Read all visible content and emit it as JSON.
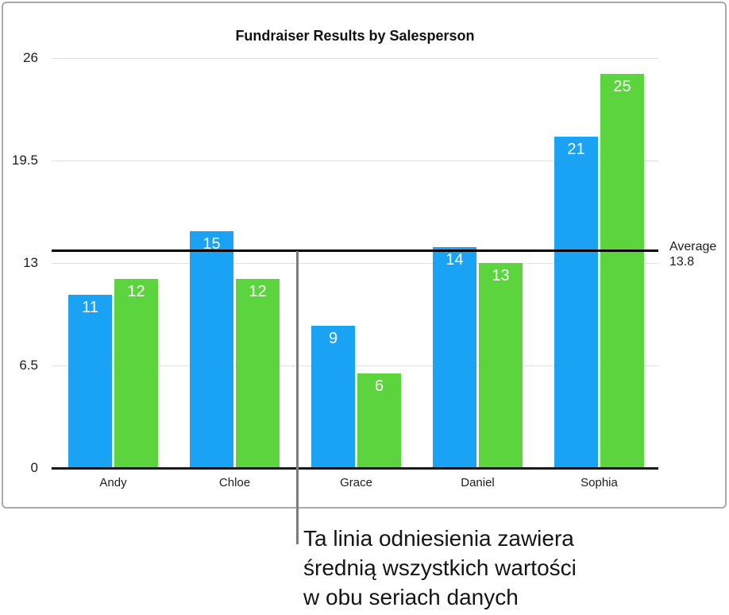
{
  "chart_data": {
    "type": "bar",
    "title": "Fundraiser Results by Salesperson",
    "categories": [
      "Andy",
      "Chloe",
      "Grace",
      "Daniel",
      "Sophia"
    ],
    "series": [
      {
        "color": "#1aa2f4",
        "values": [
          11,
          15,
          9,
          14,
          21
        ]
      },
      {
        "color": "#5cd43e",
        "values": [
          12,
          12,
          6,
          13,
          25
        ]
      }
    ],
    "y_ticks": [
      0,
      6.5,
      13,
      19.5,
      26
    ],
    "ylim": [
      0,
      26
    ],
    "xlabel": "",
    "ylabel": "",
    "grid": true,
    "legend": false,
    "reference_line": {
      "value": 13.8,
      "label": "Average",
      "color": "#000000"
    }
  },
  "annotation": {
    "lines": [
      "Ta linia odniesienia zawiera",
      "średnią wszystkich wartości",
      "w obu seriach danych"
    ]
  },
  "colors": {
    "series1": "#1aa2f4",
    "series2": "#5cd43e",
    "gridline": "#e1e1e1",
    "axis": "#1a1a1a",
    "reference_line": "#000000",
    "callout_line": "#7e7e7e",
    "panel_border": "#a9a9a9"
  }
}
